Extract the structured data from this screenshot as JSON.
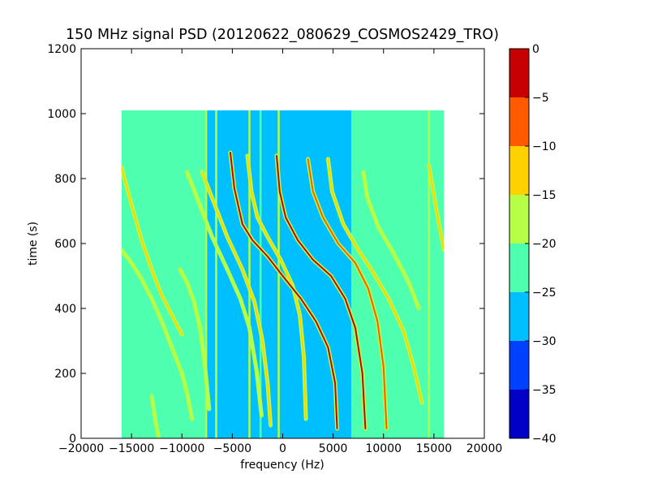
{
  "chart_data": {
    "type": "heatmap",
    "title": "150 MHz signal PSD (20120622_080629_COSMOS2429_TRO)",
    "xlabel": "frequency (Hz)",
    "ylabel": "time (s)",
    "xlim": [
      -20000,
      20000
    ],
    "ylim": [
      0,
      1200
    ],
    "xticks": [
      -20000,
      -15000,
      -10000,
      -5000,
      0,
      5000,
      10000,
      15000,
      20000
    ],
    "yticks": [
      0,
      200,
      400,
      600,
      800,
      1000,
      1200
    ],
    "grid": false,
    "data_extent": {
      "x": [
        -16000,
        16000
      ],
      "y": [
        0,
        1010
      ]
    },
    "background_level": -22.5,
    "background_band": {
      "x": [
        -7500,
        6800
      ],
      "level": -27.5
    },
    "colorbar": {
      "levels": [
        -40,
        -35,
        -30,
        -25,
        -20,
        -15,
        -10,
        -5,
        0
      ],
      "ticks": [
        0,
        -5,
        -10,
        -15,
        -20,
        -25,
        -30,
        -35,
        -40
      ],
      "colors": [
        "#0000c6",
        "#0040ff",
        "#00bfff",
        "#4dffaf",
        "#b6ff47",
        "#ffd100",
        "#ff5a00",
        "#c60000"
      ]
    },
    "tracks": [
      {
        "level": -12.5,
        "points": [
          [
            -16000,
            835
          ],
          [
            -15000,
            720
          ],
          [
            -14000,
            610
          ],
          [
            -13000,
            520
          ],
          [
            -12000,
            440
          ],
          [
            -11000,
            380
          ],
          [
            -10000,
            320
          ]
        ]
      },
      {
        "level": -17.5,
        "points": [
          [
            -16000,
            580
          ],
          [
            -15000,
            540
          ],
          [
            -14000,
            490
          ],
          [
            -13000,
            430
          ],
          [
            -12000,
            360
          ],
          [
            -11000,
            280
          ],
          [
            -10000,
            200
          ],
          [
            -9500,
            140
          ],
          [
            -9000,
            60
          ]
        ]
      },
      {
        "level": -17.5,
        "points": [
          [
            -13000,
            130
          ],
          [
            -12600,
            50
          ],
          [
            -12300,
            0
          ]
        ]
      },
      {
        "level": -17.5,
        "points": [
          [
            -10200,
            520
          ],
          [
            -9500,
            480
          ],
          [
            -8800,
            420
          ],
          [
            -8200,
            340
          ],
          [
            -7700,
            220
          ],
          [
            -7300,
            90
          ]
        ]
      },
      {
        "level": -17.5,
        "points": [
          [
            -9500,
            820
          ],
          [
            -8500,
            740
          ],
          [
            -7000,
            620
          ],
          [
            -5500,
            520
          ],
          [
            -4200,
            430
          ],
          [
            -3300,
            340
          ],
          [
            -2600,
            210
          ],
          [
            -2100,
            70
          ]
        ]
      },
      {
        "level": -12.5,
        "points": [
          [
            -8000,
            820
          ],
          [
            -7000,
            740
          ],
          [
            -5500,
            620
          ],
          [
            -4000,
            520
          ],
          [
            -2800,
            420
          ],
          [
            -2000,
            300
          ],
          [
            -1500,
            170
          ],
          [
            -1200,
            40
          ]
        ]
      },
      {
        "level": -12.5,
        "points": [
          [
            -3500,
            870
          ],
          [
            -3100,
            760
          ],
          [
            -2500,
            680
          ],
          [
            -1500,
            620
          ],
          [
            -200,
            550
          ],
          [
            1000,
            470
          ],
          [
            1700,
            380
          ],
          [
            2100,
            250
          ],
          [
            2300,
            60
          ]
        ]
      },
      {
        "level": -2.5,
        "points": [
          [
            -5200,
            880
          ],
          [
            -4800,
            770
          ],
          [
            -4000,
            660
          ],
          [
            -3000,
            610
          ],
          [
            -1500,
            560
          ],
          [
            0,
            500
          ],
          [
            1800,
            430
          ],
          [
            3300,
            360
          ],
          [
            4500,
            280
          ],
          [
            5200,
            170
          ],
          [
            5400,
            30
          ]
        ]
      },
      {
        "level": -2.5,
        "points": [
          [
            -600,
            870
          ],
          [
            -300,
            760
          ],
          [
            300,
            680
          ],
          [
            1500,
            610
          ],
          [
            3000,
            550
          ],
          [
            4800,
            500
          ],
          [
            6200,
            430
          ],
          [
            7200,
            340
          ],
          [
            7900,
            200
          ],
          [
            8200,
            30
          ]
        ]
      },
      {
        "level": -7.5,
        "points": [
          [
            2500,
            860
          ],
          [
            3000,
            760
          ],
          [
            4000,
            680
          ],
          [
            5500,
            600
          ],
          [
            7200,
            540
          ],
          [
            8500,
            460
          ],
          [
            9400,
            360
          ],
          [
            10000,
            220
          ],
          [
            10300,
            30
          ]
        ]
      },
      {
        "level": -12.5,
        "points": [
          [
            4500,
            860
          ],
          [
            4900,
            760
          ],
          [
            6000,
            660
          ],
          [
            7500,
            580
          ],
          [
            9000,
            510
          ],
          [
            10500,
            430
          ],
          [
            12000,
            330
          ],
          [
            13000,
            220
          ],
          [
            13800,
            110
          ]
        ]
      },
      {
        "level": -17.5,
        "points": [
          [
            8000,
            820
          ],
          [
            8400,
            740
          ],
          [
            9500,
            650
          ],
          [
            11000,
            570
          ],
          [
            12500,
            480
          ],
          [
            13500,
            400
          ]
        ]
      },
      {
        "level": -12.5,
        "points": [
          [
            14500,
            840
          ],
          [
            15000,
            750
          ],
          [
            15500,
            660
          ],
          [
            16000,
            580
          ]
        ]
      }
    ],
    "vertical_lines": [
      {
        "x": -7600,
        "level": -17.5
      },
      {
        "x": -6600,
        "level": -17.5
      },
      {
        "x": -3300,
        "level": -17.5
      },
      {
        "x": -2200,
        "level": -22.5
      },
      {
        "x": -400,
        "level": -17.5
      },
      {
        "x": 14500,
        "level": -17.5
      }
    ]
  }
}
